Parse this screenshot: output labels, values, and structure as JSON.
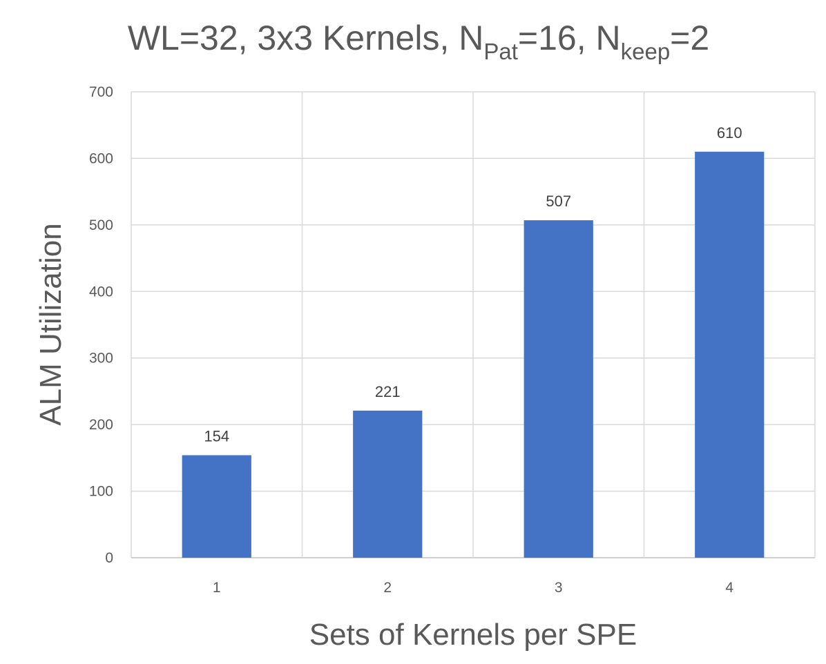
{
  "chart_data": {
    "type": "bar",
    "title": {
      "p1": "WL=32, 3x3 Kernels, N",
      "sub1": "Pat",
      "p2": "=16, N",
      "sub2": "keep",
      "p3": "=2"
    },
    "xlabel": "Sets of Kernels per SPE",
    "ylabel": "ALM Utilization",
    "categories": [
      "1",
      "2",
      "3",
      "4"
    ],
    "values": [
      154,
      221,
      507,
      610
    ],
    "data_labels": [
      "154",
      "221",
      "507",
      "610"
    ],
    "ylim": [
      0,
      700
    ],
    "yticks": [
      "0",
      "100",
      "200",
      "300",
      "400",
      "500",
      "600",
      "700"
    ],
    "grid": true,
    "bar_color": "#4472c4",
    "legend": "none"
  }
}
